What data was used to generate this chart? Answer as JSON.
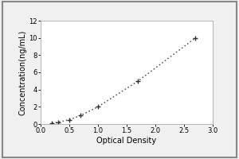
{
  "x_data": [
    0.2,
    0.3,
    0.5,
    0.7,
    1.0,
    1.7,
    2.7
  ],
  "y_data": [
    0.1,
    0.2,
    0.5,
    1.0,
    2.0,
    5.0,
    10.0
  ],
  "xlabel": "Optical Density",
  "ylabel": "Concentration(ng/mL)",
  "xlim": [
    0,
    3
  ],
  "ylim": [
    0,
    12
  ],
  "xticks": [
    0,
    0.5,
    1,
    1.5,
    2,
    2.5,
    3
  ],
  "yticks": [
    0,
    2,
    4,
    6,
    8,
    10,
    12
  ],
  "line_color": "#666666",
  "marker_color": "#333333",
  "bg_color": "#f0f0f0",
  "plot_bg_color": "#ffffff",
  "line_style": "dotted",
  "line_width": 1.2,
  "marker": "+",
  "marker_size": 4,
  "tick_label_fontsize": 6,
  "axis_label_fontsize": 7,
  "border_color": "#aaaaaa",
  "outer_border_color": "#888888",
  "outer_border_lw": 1.5
}
